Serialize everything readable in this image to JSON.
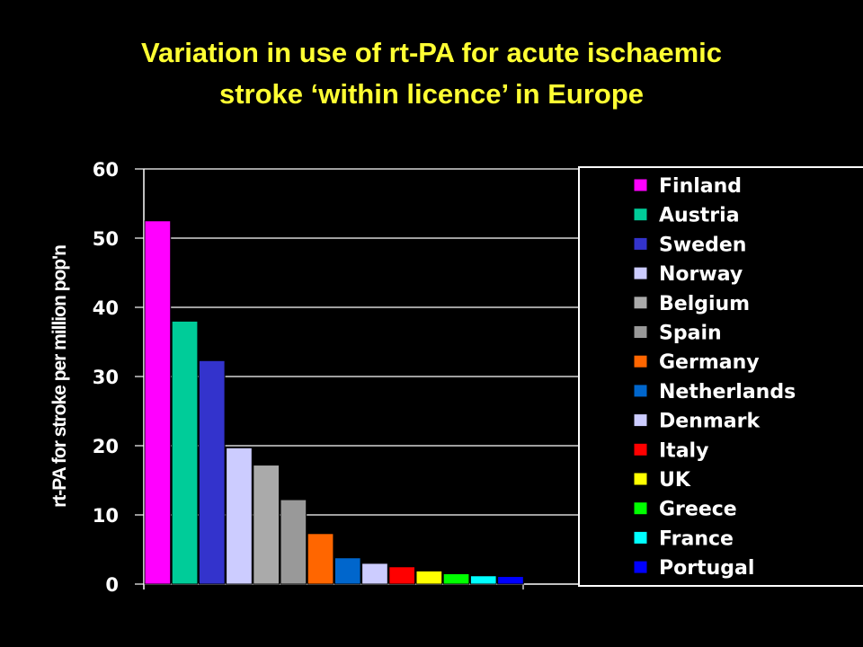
{
  "title_line1": "Variation in use of rt-PA for acute ischaemic",
  "title_line2": "stroke ‘within licence’ in Europe",
  "chart_data": {
    "type": "bar",
    "title": "Variation in use of rt-PA for acute ischaemic stroke ‘within licence’ in Europe",
    "xlabel": "",
    "ylabel": "rt-PA for stroke per million pop'n",
    "ylim": [
      0,
      60
    ],
    "yticks": [
      0,
      10,
      20,
      30,
      40,
      50,
      60
    ],
    "grid": true,
    "legend_position": "right",
    "categories": [
      "Finland",
      "Austria",
      "Sweden",
      "Norway",
      "Belgium",
      "Spain",
      "Germany",
      "Netherlands",
      "Denmark",
      "Italy",
      "UK",
      "Greece",
      "France",
      "Portugal"
    ],
    "values": [
      52.5,
      38,
      32.3,
      19.7,
      17.2,
      12.2,
      7.3,
      3.8,
      3.0,
      2.5,
      1.9,
      1.5,
      1.2,
      1.1
    ],
    "colors": [
      "#ff00ff",
      "#00cc99",
      "#3333cc",
      "#ccccff",
      "#aaaaaa",
      "#999999",
      "#ff6600",
      "#0066cc",
      "#ccccff",
      "#ff0000",
      "#ffff00",
      "#00ff00",
      "#00ffff",
      "#0000ff"
    ]
  },
  "colors": {
    "background": "#000000",
    "title": "#ffff33",
    "text": "#ffffff",
    "grid": "#ffffff"
  }
}
